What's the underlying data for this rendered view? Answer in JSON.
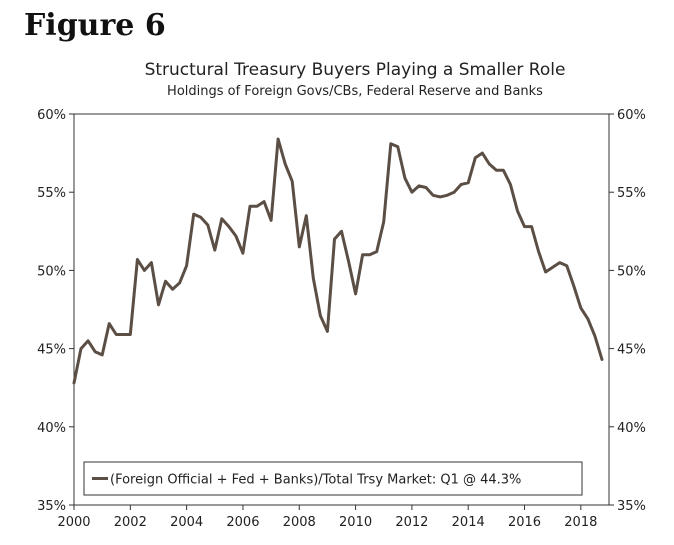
{
  "figure_label": "Figure 6",
  "chart_data": {
    "type": "line",
    "title": "Structural Treasury Buyers Playing a Smaller Role",
    "subtitle": "Holdings of Foreign Govs/CBs, Federal Reserve and Banks",
    "xlabel": "",
    "ylabel": "",
    "xlim": [
      2000,
      2019
    ],
    "ylim": [
      35,
      60
    ],
    "x_ticks": [
      2000,
      2002,
      2004,
      2006,
      2008,
      2010,
      2012,
      2014,
      2016,
      2018
    ],
    "x_tick_labels": [
      "2000",
      "2002",
      "2004",
      "2006",
      "2008",
      "2010",
      "2012",
      "2014",
      "2016",
      "2018"
    ],
    "y_ticks": [
      35,
      40,
      45,
      50,
      55,
      60
    ],
    "y_tick_labels": [
      "35%",
      "40%",
      "45%",
      "50%",
      "55%",
      "60%"
    ],
    "grid": false,
    "line_color": "#5b4e45",
    "legend_placement": "bottom-center",
    "series": [
      {
        "name": "(Foreign Official + Fed + Banks)/Total Trsy Market: Q1 @ 44.3%",
        "x": [
          2000.0,
          2000.25,
          2000.5,
          2000.75,
          2001.0,
          2001.25,
          2001.5,
          2001.75,
          2002.0,
          2002.25,
          2002.5,
          2002.75,
          2003.0,
          2003.25,
          2003.5,
          2003.75,
          2004.0,
          2004.25,
          2004.5,
          2004.75,
          2005.0,
          2005.25,
          2005.5,
          2005.75,
          2006.0,
          2006.25,
          2006.5,
          2006.75,
          2007.0,
          2007.25,
          2007.5,
          2007.75,
          2008.0,
          2008.25,
          2008.5,
          2008.75,
          2009.0,
          2009.25,
          2009.5,
          2009.75,
          2010.0,
          2010.25,
          2010.5,
          2010.75,
          2011.0,
          2011.25,
          2011.5,
          2011.75,
          2012.0,
          2012.25,
          2012.5,
          2012.75,
          2013.0,
          2013.25,
          2013.5,
          2013.75,
          2014.0,
          2014.25,
          2014.5,
          2014.75,
          2015.0,
          2015.25,
          2015.5,
          2015.75,
          2016.0,
          2016.25,
          2016.5,
          2016.75,
          2017.0,
          2017.25,
          2017.5,
          2017.75,
          2018.0,
          2018.25,
          2018.5,
          2018.75
        ],
        "values": [
          42.8,
          45.0,
          45.5,
          44.8,
          44.6,
          46.6,
          45.9,
          45.9,
          45.9,
          50.7,
          50.0,
          50.5,
          47.8,
          49.3,
          48.8,
          49.2,
          50.3,
          53.6,
          53.4,
          52.9,
          51.3,
          53.3,
          52.8,
          52.2,
          51.1,
          54.1,
          54.1,
          54.4,
          53.2,
          58.4,
          56.8,
          55.7,
          51.5,
          53.5,
          49.5,
          47.1,
          46.1,
          52.0,
          52.5,
          50.6,
          48.5,
          51.0,
          51.0,
          51.2,
          53.1,
          58.1,
          57.9,
          55.9,
          55.0,
          55.4,
          55.3,
          54.8,
          54.7,
          54.8,
          55.0,
          55.5,
          55.6,
          57.2,
          57.5,
          56.8,
          56.4,
          56.4,
          55.5,
          53.8,
          52.8,
          52.8,
          51.2,
          49.9,
          50.2,
          50.5,
          50.3,
          49.0,
          47.6,
          46.9,
          45.8,
          44.3
        ]
      }
    ]
  }
}
